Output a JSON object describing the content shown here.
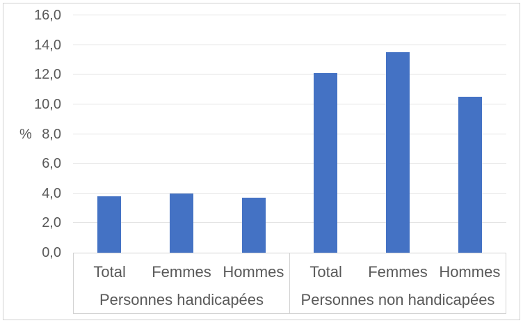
{
  "chart_data": {
    "type": "bar",
    "title": "",
    "ylabel": "%",
    "xlabel": "",
    "ylim": [
      0,
      16
    ],
    "ytick_step": 2,
    "decimal_separator": ",",
    "grid": true,
    "legend": null,
    "yticks": [
      {
        "value": 0,
        "label": "0,0"
      },
      {
        "value": 2,
        "label": "2,0"
      },
      {
        "value": 4,
        "label": "4,0"
      },
      {
        "value": 6,
        "label": "6,0"
      },
      {
        "value": 8,
        "label": "8,0"
      },
      {
        "value": 10,
        "label": "10,0"
      },
      {
        "value": 12,
        "label": "12,0"
      },
      {
        "value": 14,
        "label": "14,0"
      },
      {
        "value": 16,
        "label": "16,0"
      }
    ],
    "groups": [
      {
        "label": "Personnes handicapées",
        "categories": [
          "Total",
          "Femmes",
          "Hommes"
        ],
        "values": [
          3.8,
          4.0,
          3.7
        ]
      },
      {
        "label": "Personnes non handicapées",
        "categories": [
          "Total",
          "Femmes",
          "Hommes"
        ],
        "values": [
          12.1,
          13.5,
          10.5
        ]
      }
    ],
    "colors": {
      "bar": "#4472C4",
      "text": "#595959",
      "gridline": "#E3E3E3",
      "axis_line": "#D2D2D2"
    }
  }
}
